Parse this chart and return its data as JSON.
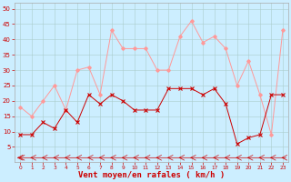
{
  "hours": [
    0,
    1,
    2,
    3,
    4,
    5,
    6,
    7,
    8,
    9,
    10,
    11,
    12,
    13,
    14,
    15,
    16,
    17,
    18,
    19,
    20,
    21,
    22,
    23
  ],
  "vent_moyen": [
    9,
    9,
    13,
    11,
    17,
    13,
    22,
    19,
    22,
    20,
    17,
    17,
    17,
    24,
    24,
    24,
    22,
    24,
    19,
    6,
    8,
    9,
    22,
    22
  ],
  "rafales": [
    18,
    15,
    20,
    25,
    17,
    30,
    31,
    22,
    43,
    37,
    37,
    37,
    30,
    30,
    41,
    46,
    39,
    41,
    37,
    25,
    33,
    22,
    9,
    43
  ],
  "wind_color": "#cc0000",
  "gust_color": "#ff9999",
  "bg_color": "#cceeff",
  "grid_color": "#aacccc",
  "xlabel": "Vent moyen/en rafales ( km/h )",
  "xlabel_color": "#cc0000",
  "yticks": [
    5,
    10,
    15,
    20,
    25,
    30,
    35,
    40,
    45,
    50
  ],
  "ylim": [
    0,
    52
  ],
  "xlim": [
    -0.5,
    23.5
  ]
}
